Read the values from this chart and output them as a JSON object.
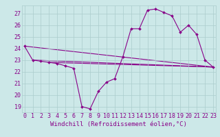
{
  "xlabel": "Windchill (Refroidissement éolien,°C)",
  "x_hours": [
    0,
    1,
    2,
    3,
    4,
    5,
    6,
    7,
    8,
    9,
    10,
    11,
    12,
    13,
    14,
    15,
    16,
    17,
    18,
    19,
    20,
    21,
    22,
    23
  ],
  "windchill": [
    24.2,
    23.0,
    22.9,
    22.8,
    22.7,
    22.5,
    22.3,
    19.0,
    18.8,
    20.3,
    21.1,
    21.4,
    23.3,
    25.7,
    25.7,
    27.3,
    27.4,
    27.1,
    26.8,
    25.4,
    26.0,
    25.2,
    23.0,
    22.4
  ],
  "line1_x": [
    0,
    23
  ],
  "line1_y": [
    24.2,
    22.4
  ],
  "line2_x": [
    1,
    23
  ],
  "line2_y": [
    23.0,
    22.4
  ],
  "line3_x": [
    3,
    23
  ],
  "line3_y": [
    22.8,
    22.4
  ],
  "ylim_min": 18.5,
  "ylim_max": 27.7,
  "yticks": [
    19,
    20,
    21,
    22,
    23,
    24,
    25,
    26,
    27
  ],
  "xlim_min": -0.3,
  "xlim_max": 23.3,
  "bg_color": "#cce8e8",
  "line_color": "#880088",
  "grid_color": "#aacccc",
  "font_color": "#880088",
  "tick_fontsize": 6.0,
  "xlabel_fontsize": 6.5
}
